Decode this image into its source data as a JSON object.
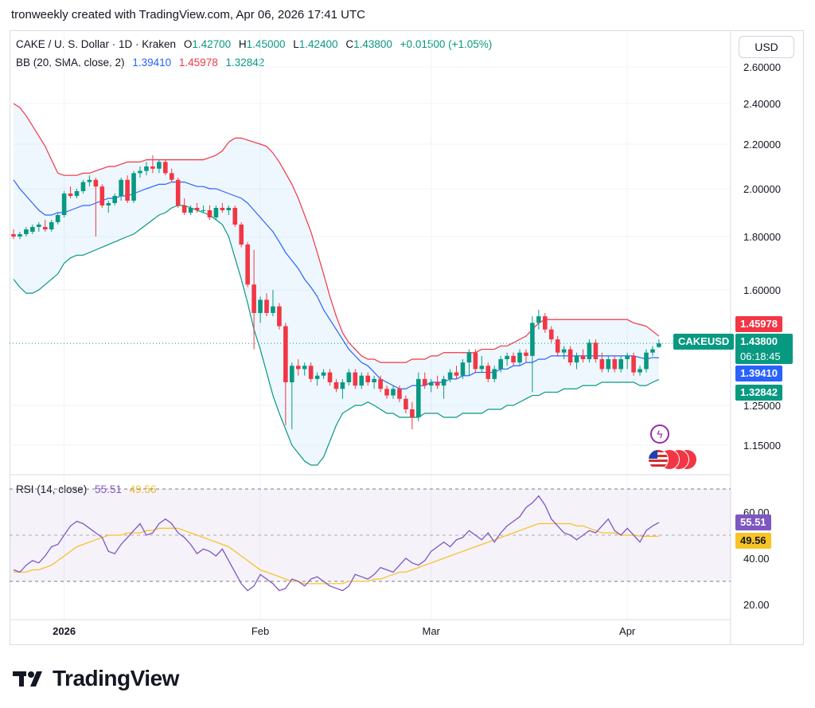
{
  "header": {
    "caption": "tronweekly created with TradingView.com, Apr 06, 2026 17:41 UTC"
  },
  "currency_button": "USD",
  "legend": {
    "symbol": "CAKE / U. S. Dollar · 1D · Kraken",
    "o_label": "O",
    "o": "1.42700",
    "h_label": "H",
    "h": "1.45000",
    "l_label": "L",
    "l": "1.42400",
    "c_label": "C",
    "c": "1.43800",
    "change": "+0.01500 (+1.05%)",
    "bb_label": "BB (20, SMA, close, 2)",
    "bb_basis": "1.39410",
    "bb_upper": "1.45978",
    "bb_lower": "1.32842",
    "rsi_label": "RSI (14, close)",
    "rsi": "55.51",
    "rsi_ma": "49.56"
  },
  "badges": {
    "upper": "1.45978",
    "symbol": "CAKEUSD",
    "price": "1.43800",
    "countdown": "06:18:45",
    "basis": "1.39410",
    "lower": "1.32842",
    "rsi": "55.51",
    "rsi_ma": "49.56"
  },
  "brand": {
    "name": "TradingView"
  },
  "colors": {
    "up": "#089981",
    "down": "#f23645",
    "basis": "#2962ff",
    "upper": "#f23645",
    "lower": "#089981",
    "rsi": "#7e57c2",
    "rsi_ma": "#f7c325"
  },
  "chart_data": [
    {
      "type": "candlestick",
      "price_ticks": [
        "2.60000",
        "2.40000",
        "2.20000",
        "2.00000",
        "1.80000",
        "1.60000",
        "1.25000",
        "1.15000"
      ],
      "price_tick_values": [
        2.6,
        2.4,
        2.2,
        2.0,
        1.8,
        1.6,
        1.25,
        1.15
      ],
      "date_labels": [
        "2026",
        "Feb",
        "Mar",
        "Apr"
      ],
      "date_label_index": [
        8,
        39,
        66,
        97
      ],
      "ylim": [
        1.1,
        2.65
      ],
      "candles": [
        [
          1.81,
          1.83,
          1.79,
          1.8
        ],
        [
          1.8,
          1.82,
          1.79,
          1.81
        ],
        [
          1.81,
          1.84,
          1.8,
          1.83
        ],
        [
          1.82,
          1.85,
          1.81,
          1.84
        ],
        [
          1.84,
          1.86,
          1.82,
          1.85
        ],
        [
          1.84,
          1.87,
          1.82,
          1.83
        ],
        [
          1.83,
          1.87,
          1.82,
          1.86
        ],
        [
          1.86,
          1.9,
          1.85,
          1.89
        ],
        [
          1.89,
          1.99,
          1.88,
          1.98
        ],
        [
          1.98,
          2.01,
          1.96,
          1.97
        ],
        [
          1.97,
          2.0,
          1.96,
          1.99
        ],
        [
          1.99,
          2.04,
          1.98,
          2.03
        ],
        [
          2.03,
          2.06,
          2.01,
          2.04
        ],
        [
          2.04,
          2.05,
          1.8,
          2.01
        ],
        [
          2.01,
          2.02,
          1.92,
          1.93
        ],
        [
          1.93,
          1.95,
          1.9,
          1.94
        ],
        [
          1.94,
          1.98,
          1.93,
          1.97
        ],
        [
          1.97,
          2.05,
          1.95,
          2.04
        ],
        [
          2.04,
          2.06,
          1.94,
          1.95
        ],
        [
          1.95,
          2.08,
          1.94,
          2.07
        ],
        [
          2.07,
          2.1,
          2.05,
          2.08
        ],
        [
          2.08,
          2.12,
          2.06,
          2.1
        ],
        [
          2.1,
          2.15,
          2.07,
          2.09
        ],
        [
          2.09,
          2.13,
          2.07,
          2.12
        ],
        [
          2.12,
          2.13,
          2.06,
          2.07
        ],
        [
          2.07,
          2.09,
          2.03,
          2.04
        ],
        [
          2.04,
          2.05,
          1.92,
          1.93
        ],
        [
          1.93,
          1.96,
          1.89,
          1.9
        ],
        [
          1.9,
          1.93,
          1.89,
          1.92
        ],
        [
          1.92,
          1.94,
          1.9,
          1.91
        ],
        [
          1.91,
          1.93,
          1.9,
          1.91
        ],
        [
          1.91,
          1.93,
          1.87,
          1.88
        ],
        [
          1.88,
          1.93,
          1.87,
          1.92
        ],
        [
          1.92,
          1.94,
          1.9,
          1.91
        ],
        [
          1.91,
          1.93,
          1.89,
          1.92
        ],
        [
          1.92,
          1.93,
          1.84,
          1.85
        ],
        [
          1.85,
          1.86,
          1.76,
          1.77
        ],
        [
          1.77,
          1.78,
          1.61,
          1.62
        ],
        [
          1.62,
          1.75,
          1.42,
          1.53
        ],
        [
          1.53,
          1.58,
          1.5,
          1.57
        ],
        [
          1.57,
          1.59,
          1.52,
          1.53
        ],
        [
          1.53,
          1.6,
          1.52,
          1.55
        ],
        [
          1.55,
          1.56,
          1.48,
          1.49
        ],
        [
          1.49,
          1.5,
          1.2,
          1.32
        ],
        [
          1.32,
          1.38,
          1.19,
          1.37
        ],
        [
          1.37,
          1.39,
          1.34,
          1.36
        ],
        [
          1.36,
          1.38,
          1.34,
          1.37
        ],
        [
          1.37,
          1.38,
          1.32,
          1.33
        ],
        [
          1.33,
          1.35,
          1.31,
          1.34
        ],
        [
          1.34,
          1.36,
          1.33,
          1.35
        ],
        [
          1.35,
          1.36,
          1.31,
          1.32
        ],
        [
          1.32,
          1.33,
          1.29,
          1.3
        ],
        [
          1.3,
          1.33,
          1.27,
          1.32
        ],
        [
          1.32,
          1.36,
          1.31,
          1.35
        ],
        [
          1.35,
          1.36,
          1.3,
          1.31
        ],
        [
          1.31,
          1.35,
          1.3,
          1.34
        ],
        [
          1.34,
          1.35,
          1.31,
          1.32
        ],
        [
          1.32,
          1.34,
          1.3,
          1.33
        ],
        [
          1.33,
          1.34,
          1.29,
          1.3
        ],
        [
          1.3,
          1.31,
          1.27,
          1.28
        ],
        [
          1.28,
          1.31,
          1.27,
          1.3
        ],
        [
          1.3,
          1.31,
          1.26,
          1.27
        ],
        [
          1.27,
          1.28,
          1.23,
          1.24
        ],
        [
          1.24,
          1.26,
          1.19,
          1.22
        ],
        [
          1.22,
          1.35,
          1.21,
          1.33
        ],
        [
          1.33,
          1.35,
          1.3,
          1.31
        ],
        [
          1.31,
          1.33,
          1.29,
          1.32
        ],
        [
          1.32,
          1.34,
          1.3,
          1.31
        ],
        [
          1.31,
          1.34,
          1.27,
          1.33
        ],
        [
          1.33,
          1.36,
          1.32,
          1.35
        ],
        [
          1.35,
          1.37,
          1.33,
          1.34
        ],
        [
          1.34,
          1.39,
          1.33,
          1.38
        ],
        [
          1.38,
          1.42,
          1.34,
          1.41
        ],
        [
          1.41,
          1.42,
          1.35,
          1.36
        ],
        [
          1.36,
          1.4,
          1.35,
          1.37
        ],
        [
          1.37,
          1.38,
          1.32,
          1.33
        ],
        [
          1.33,
          1.37,
          1.32,
          1.36
        ],
        [
          1.36,
          1.4,
          1.35,
          1.39
        ],
        [
          1.39,
          1.41,
          1.37,
          1.4
        ],
        [
          1.4,
          1.41,
          1.37,
          1.38
        ],
        [
          1.38,
          1.42,
          1.37,
          1.41
        ],
        [
          1.41,
          1.42,
          1.38,
          1.4
        ],
        [
          1.4,
          1.52,
          1.29,
          1.5
        ],
        [
          1.5,
          1.54,
          1.48,
          1.52
        ],
        [
          1.52,
          1.53,
          1.47,
          1.48
        ],
        [
          1.48,
          1.49,
          1.44,
          1.45
        ],
        [
          1.45,
          1.46,
          1.4,
          1.41
        ],
        [
          1.41,
          1.43,
          1.39,
          1.42
        ],
        [
          1.42,
          1.43,
          1.37,
          1.38
        ],
        [
          1.38,
          1.41,
          1.36,
          1.4
        ],
        [
          1.4,
          1.42,
          1.38,
          1.39
        ],
        [
          1.39,
          1.45,
          1.38,
          1.44
        ],
        [
          1.44,
          1.45,
          1.38,
          1.39
        ],
        [
          1.39,
          1.41,
          1.35,
          1.36
        ],
        [
          1.36,
          1.4,
          1.35,
          1.39
        ],
        [
          1.39,
          1.4,
          1.35,
          1.36
        ],
        [
          1.36,
          1.4,
          1.35,
          1.39
        ],
        [
          1.39,
          1.41,
          1.36,
          1.4
        ],
        [
          1.4,
          1.41,
          1.34,
          1.35
        ],
        [
          1.35,
          1.37,
          1.34,
          1.36
        ],
        [
          1.36,
          1.42,
          1.35,
          1.41
        ],
        [
          1.41,
          1.43,
          1.4,
          1.42
        ],
        [
          1.427,
          1.45,
          1.424,
          1.438
        ]
      ],
      "bb_basis": [
        2.04,
        2.0,
        1.97,
        1.94,
        1.91,
        1.89,
        1.89,
        1.9,
        1.9,
        1.91,
        1.92,
        1.93,
        1.93,
        1.94,
        1.95,
        1.96,
        1.96,
        1.97,
        1.97,
        1.98,
        1.99,
        2.0,
        2.01,
        2.02,
        2.02,
        2.03,
        2.03,
        2.03,
        2.02,
        2.01,
        2.01,
        2.0,
        2.0,
        1.99,
        1.98,
        1.97,
        1.96,
        1.94,
        1.91,
        1.88,
        1.85,
        1.82,
        1.78,
        1.74,
        1.71,
        1.68,
        1.64,
        1.61,
        1.58,
        1.54,
        1.51,
        1.48,
        1.45,
        1.42,
        1.4,
        1.38,
        1.37,
        1.35,
        1.33,
        1.32,
        1.31,
        1.3,
        1.3,
        1.31,
        1.31,
        1.31,
        1.32,
        1.32,
        1.32,
        1.33,
        1.33,
        1.34,
        1.34,
        1.35,
        1.35,
        1.35,
        1.35,
        1.36,
        1.36,
        1.37,
        1.37,
        1.38,
        1.38,
        1.39,
        1.39,
        1.4,
        1.4,
        1.4,
        1.4,
        1.4,
        1.4,
        1.4,
        1.4,
        1.4,
        1.4,
        1.4,
        1.4,
        1.4,
        1.4,
        1.395,
        1.39,
        1.395,
        1.394
      ],
      "bb_upper": [
        2.4,
        2.38,
        2.34,
        2.29,
        2.24,
        2.19,
        2.13,
        2.07,
        2.06,
        2.06,
        2.06,
        2.07,
        2.07,
        2.08,
        2.09,
        2.1,
        2.1,
        2.11,
        2.12,
        2.12,
        2.12,
        2.13,
        2.13,
        2.13,
        2.13,
        2.13,
        2.13,
        2.13,
        2.13,
        2.13,
        2.13,
        2.14,
        2.15,
        2.17,
        2.21,
        2.23,
        2.23,
        2.22,
        2.21,
        2.2,
        2.19,
        2.16,
        2.12,
        2.07,
        2.02,
        1.96,
        1.89,
        1.82,
        1.74,
        1.66,
        1.58,
        1.52,
        1.47,
        1.44,
        1.42,
        1.4,
        1.39,
        1.39,
        1.38,
        1.38,
        1.38,
        1.38,
        1.38,
        1.39,
        1.39,
        1.39,
        1.4,
        1.4,
        1.41,
        1.41,
        1.41,
        1.41,
        1.41,
        1.41,
        1.42,
        1.42,
        1.42,
        1.43,
        1.43,
        1.44,
        1.45,
        1.46,
        1.48,
        1.5,
        1.51,
        1.51,
        1.51,
        1.51,
        1.51,
        1.51,
        1.51,
        1.51,
        1.51,
        1.51,
        1.51,
        1.51,
        1.51,
        1.51,
        1.5,
        1.495,
        1.49,
        1.475,
        1.4598
      ],
      "bb_lower": [
        1.64,
        1.61,
        1.59,
        1.59,
        1.6,
        1.62,
        1.64,
        1.66,
        1.7,
        1.72,
        1.73,
        1.73,
        1.74,
        1.75,
        1.76,
        1.77,
        1.78,
        1.79,
        1.8,
        1.81,
        1.83,
        1.85,
        1.87,
        1.89,
        1.9,
        1.92,
        1.93,
        1.93,
        1.92,
        1.91,
        1.9,
        1.89,
        1.87,
        1.85,
        1.8,
        1.72,
        1.64,
        1.56,
        1.48,
        1.42,
        1.35,
        1.28,
        1.23,
        1.19,
        1.15,
        1.13,
        1.11,
        1.1,
        1.1,
        1.12,
        1.16,
        1.2,
        1.23,
        1.24,
        1.25,
        1.25,
        1.26,
        1.25,
        1.24,
        1.23,
        1.23,
        1.22,
        1.22,
        1.22,
        1.22,
        1.23,
        1.23,
        1.23,
        1.22,
        1.22,
        1.22,
        1.23,
        1.23,
        1.23,
        1.23,
        1.24,
        1.24,
        1.24,
        1.25,
        1.25,
        1.26,
        1.27,
        1.28,
        1.28,
        1.29,
        1.29,
        1.29,
        1.3,
        1.3,
        1.3,
        1.31,
        1.31,
        1.31,
        1.32,
        1.32,
        1.32,
        1.32,
        1.32,
        1.32,
        1.31,
        1.31,
        1.32,
        1.3284
      ],
      "last_price": 1.438
    },
    {
      "type": "line",
      "title": "RSI (14, close)",
      "y_ticks": [
        "60.00",
        "40.00",
        "20.00"
      ],
      "y_tick_values": [
        60,
        40,
        20
      ],
      "ylim": [
        15,
        68
      ],
      "bands": [
        70,
        30
      ],
      "rsi": [
        35,
        34,
        37,
        39,
        38,
        41,
        45,
        46,
        50,
        54,
        56,
        55,
        53,
        51,
        49,
        43,
        42,
        46,
        49,
        52,
        55,
        50,
        51,
        55,
        57,
        55,
        51,
        49,
        46,
        42,
        44,
        43,
        41,
        44,
        39,
        34,
        29,
        26,
        28,
        33,
        31,
        29,
        26,
        27,
        31,
        30,
        28,
        31,
        32,
        30,
        28,
        27,
        26,
        28,
        33,
        32,
        31,
        33,
        36,
        35,
        34,
        37,
        40,
        38,
        37,
        39,
        43,
        45,
        47,
        45,
        48,
        49,
        52,
        50,
        48,
        51,
        47,
        51,
        54,
        56,
        58,
        62,
        64,
        67,
        63,
        57,
        54,
        51,
        50,
        48,
        50,
        52,
        51,
        54,
        57,
        52,
        50,
        53,
        50,
        47,
        52,
        54,
        55.51
      ],
      "rsi_ma": [
        34,
        34,
        34,
        35,
        35,
        36,
        37,
        39,
        41,
        43,
        45,
        46,
        47,
        48,
        49,
        50,
        50,
        50,
        51,
        51,
        51,
        52,
        52,
        53,
        53,
        53,
        53,
        52,
        51,
        50,
        49,
        48,
        47,
        46,
        45,
        43,
        41,
        39,
        37,
        35,
        34,
        33,
        32,
        31,
        30,
        30,
        29,
        29,
        29,
        29,
        29,
        29,
        29,
        30,
        30,
        30,
        30,
        31,
        31,
        32,
        33,
        34,
        34,
        35,
        36,
        37,
        38,
        39,
        40,
        41,
        42,
        43,
        44,
        45,
        46,
        47,
        48,
        49,
        50,
        51,
        52,
        53,
        54,
        55,
        55,
        55,
        55,
        55,
        55,
        54,
        54,
        53,
        52,
        51,
        51,
        51,
        50,
        50,
        50,
        49.6,
        49.5,
        49.5,
        49.56
      ]
    }
  ]
}
